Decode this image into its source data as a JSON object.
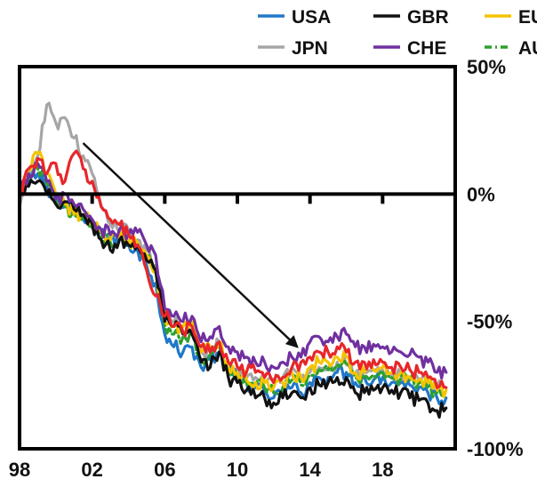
{
  "chart_data": {
    "type": "line",
    "title": "",
    "xlabel": "",
    "ylabel": "",
    "xlim": [
      1998,
      2022
    ],
    "ylim": [
      -100,
      50
    ],
    "x_ticks": [
      {
        "value": 1998,
        "label": "98"
      },
      {
        "value": 2002,
        "label": "02"
      },
      {
        "value": 2006,
        "label": "06"
      },
      {
        "value": 2010,
        "label": "10"
      },
      {
        "value": 2014,
        "label": "14"
      },
      {
        "value": 2018,
        "label": "18"
      }
    ],
    "y_ticks": [
      {
        "value": 50,
        "label": "50%"
      },
      {
        "value": 0,
        "label": "0%"
      },
      {
        "value": -50,
        "label": "-50%"
      },
      {
        "value": -100,
        "label": "-100%"
      }
    ],
    "grid": false,
    "y_axis_side": "right",
    "legend_position": "top",
    "series": [
      {
        "name": "USA",
        "color": "#1f78c8",
        "dash": "solid",
        "x": [
          1998,
          1998.5,
          1999,
          1999.5,
          2000,
          2000.5,
          2001,
          2001.5,
          2002,
          2002.5,
          2003,
          2003.5,
          2004,
          2004.5,
          2005,
          2005.5,
          2006,
          2006.5,
          2007,
          2007.5,
          2008,
          2008.5,
          2009,
          2009.5,
          2010,
          2010.5,
          2011,
          2011.5,
          2012,
          2012.5,
          2013,
          2013.5,
          2014,
          2014.5,
          2015,
          2015.5,
          2016,
          2016.5,
          2017,
          2017.5,
          2018,
          2018.5,
          2019,
          2019.5,
          2020,
          2020.5,
          2021,
          2021.5
        ],
        "values": [
          0,
          5,
          8,
          3,
          -2,
          -5,
          -8,
          -10,
          -12,
          -14,
          -18,
          -18,
          -20,
          -22,
          -28,
          -35,
          -55,
          -60,
          -62,
          -60,
          -68,
          -65,
          -62,
          -70,
          -72,
          -74,
          -76,
          -78,
          -80,
          -78,
          -76,
          -78,
          -74,
          -72,
          -72,
          -70,
          -70,
          -74,
          -72,
          -73,
          -72,
          -74,
          -74,
          -75,
          -76,
          -78,
          -80,
          -80
        ]
      },
      {
        "name": "GBR",
        "color": "#111111",
        "dash": "solid",
        "x": [
          1998,
          1998.5,
          1999,
          1999.5,
          2000,
          2000.5,
          2001,
          2001.5,
          2002,
          2002.5,
          2003,
          2003.5,
          2004,
          2004.5,
          2005,
          2005.5,
          2006,
          2006.5,
          2007,
          2007.5,
          2008,
          2008.5,
          2009,
          2009.5,
          2010,
          2010.5,
          2011,
          2011.5,
          2012,
          2012.5,
          2013,
          2013.5,
          2014,
          2014.5,
          2015,
          2015.5,
          2016,
          2016.5,
          2017,
          2017.5,
          2018,
          2018.5,
          2019,
          2019.5,
          2020,
          2020.5,
          2021,
          2021.5
        ],
        "values": [
          0,
          3,
          5,
          0,
          -4,
          -3,
          -6,
          -8,
          -12,
          -18,
          -22,
          -18,
          -20,
          -20,
          -26,
          -30,
          -50,
          -52,
          -55,
          -55,
          -66,
          -68,
          -62,
          -72,
          -74,
          -77,
          -80,
          -80,
          -82,
          -80,
          -78,
          -80,
          -76,
          -75,
          -74,
          -72,
          -72,
          -78,
          -78,
          -77,
          -76,
          -77,
          -78,
          -80,
          -81,
          -82,
          -85,
          -84
        ]
      },
      {
        "name": "JPN",
        "color": "#a6a6a6",
        "dash": "solid",
        "x": [
          1998,
          1998.5,
          1999,
          1999.5,
          2000,
          2000.5,
          2001,
          2001.5,
          2002,
          2002.5,
          2003,
          2003.5,
          2004,
          2004.5,
          2005,
          2005.5,
          2006,
          2006.5,
          2007,
          2007.5,
          2008,
          2008.5,
          2009,
          2009.5,
          2010,
          2010.5,
          2011,
          2011.5,
          2012,
          2012.5,
          2013,
          2013.5,
          2014,
          2014.5,
          2015,
          2015.5,
          2016,
          2016.5,
          2017,
          2017.5,
          2018,
          2018.5,
          2019,
          2019.5,
          2020,
          2020.5,
          2021,
          2021.5
        ],
        "values": [
          -5,
          5,
          15,
          35,
          28,
          30,
          22,
          15,
          8,
          -5,
          -12,
          -15,
          -14,
          -18,
          -22,
          -28,
          -48,
          -50,
          -54,
          -52,
          -62,
          -62,
          -58,
          -68,
          -70,
          -72,
          -72,
          -74,
          -74,
          -72,
          -68,
          -72,
          -70,
          -68,
          -68,
          -66,
          -67,
          -70,
          -70,
          -69,
          -69,
          -70,
          -71,
          -72,
          -73,
          -74,
          -76,
          -76
        ]
      },
      {
        "name": "CHE",
        "color": "#7030a0",
        "dash": "solid",
        "x": [
          1998,
          1998.5,
          1999,
          1999.5,
          2000,
          2000.5,
          2001,
          2001.5,
          2002,
          2002.5,
          2003,
          2003.5,
          2004,
          2004.5,
          2005,
          2005.5,
          2006,
          2006.5,
          2007,
          2007.5,
          2008,
          2008.5,
          2009,
          2009.5,
          2010,
          2010.5,
          2011,
          2011.5,
          2012,
          2012.5,
          2013,
          2013.5,
          2014,
          2014.5,
          2015,
          2015.5,
          2016,
          2016.5,
          2017,
          2017.5,
          2018,
          2018.5,
          2019,
          2019.5,
          2020,
          2020.5,
          2021,
          2021.5
        ],
        "values": [
          0,
          8,
          12,
          5,
          -2,
          0,
          -4,
          -6,
          -10,
          -14,
          -16,
          -14,
          -16,
          -15,
          -20,
          -24,
          -45,
          -48,
          -50,
          -48,
          -58,
          -56,
          -52,
          -60,
          -62,
          -64,
          -66,
          -66,
          -68,
          -66,
          -64,
          -64,
          -58,
          -56,
          -58,
          -56,
          -55,
          -60,
          -60,
          -59,
          -60,
          -62,
          -62,
          -63,
          -64,
          -66,
          -70,
          -70
        ]
      },
      {
        "name": "EUR",
        "color": "#f5c400",
        "dash": "solid",
        "x": [
          1998,
          1998.5,
          1999,
          1999.5,
          2000,
          2000.5,
          2001,
          2001.5,
          2002,
          2002.5,
          2003,
          2003.5,
          2004,
          2004.5,
          2005,
          2005.5,
          2006,
          2006.5,
          2007,
          2007.5,
          2008,
          2008.5,
          2009,
          2009.5,
          2010,
          2010.5,
          2011,
          2011.5,
          2012,
          2012.5,
          2013,
          2013.5,
          2014,
          2014.5,
          2015,
          2015.5,
          2016,
          2016.5,
          2017,
          2017.5,
          2018,
          2018.5,
          2019,
          2019.5,
          2020,
          2020.5,
          2021,
          2021.5
        ],
        "values": [
          0,
          10,
          16,
          8,
          0,
          -4,
          -8,
          -8,
          -12,
          -15,
          -18,
          -17,
          -18,
          -19,
          -24,
          -30,
          -50,
          -52,
          -52,
          -50,
          -62,
          -60,
          -58,
          -68,
          -70,
          -73,
          -74,
          -74,
          -76,
          -74,
          -70,
          -72,
          -68,
          -66,
          -66,
          -64,
          -64,
          -70,
          -70,
          -69,
          -68,
          -70,
          -70,
          -72,
          -73,
          -74,
          -77,
          -77
        ]
      },
      {
        "name": "AUS",
        "color": "#2ca02c",
        "dash": "dashdot",
        "x": [
          1998,
          1998.5,
          1999,
          1999.5,
          2000,
          2000.5,
          2001,
          2001.5,
          2002,
          2002.5,
          2003,
          2003.5,
          2004,
          2004.5,
          2005,
          2005.5,
          2006,
          2006.5,
          2007,
          2007.5,
          2008,
          2008.5,
          2009,
          2009.5,
          2010,
          2010.5,
          2011,
          2011.5,
          2012,
          2012.5,
          2013,
          2013.5,
          2014,
          2014.5,
          2015,
          2015.5,
          2016,
          2016.5,
          2017,
          2017.5,
          2018,
          2018.5,
          2019,
          2019.5,
          2020,
          2020.5,
          2021,
          2021.5
        ],
        "values": [
          0,
          6,
          10,
          4,
          -3,
          -5,
          -8,
          -9,
          -13,
          -16,
          -19,
          -18,
          -19,
          -20,
          -25,
          -31,
          -52,
          -55,
          -56,
          -55,
          -65,
          -63,
          -60,
          -70,
          -71,
          -74,
          -75,
          -76,
          -78,
          -76,
          -73,
          -75,
          -71,
          -69,
          -69,
          -67,
          -67,
          -72,
          -71,
          -71,
          -70,
          -72,
          -72,
          -73,
          -74,
          -76,
          -78,
          -78
        ]
      },
      {
        "name": "",
        "color": "#e8262a",
        "dash": "solid",
        "x": [
          1998,
          1998.5,
          1999,
          1999.5,
          2000,
          2000.5,
          2001,
          2001.5,
          2002,
          2002.5,
          2003,
          2003.5,
          2004,
          2004.5,
          2005,
          2005.5,
          2006,
          2006.5,
          2007,
          2007.5,
          2008,
          2008.5,
          2009,
          2009.5,
          2010,
          2010.5,
          2011,
          2011.5,
          2012,
          2012.5,
          2013,
          2013.5,
          2014,
          2014.5,
          2015,
          2015.5,
          2016,
          2016.5,
          2017,
          2017.5,
          2018,
          2018.5,
          2019,
          2019.5,
          2020,
          2020.5,
          2021,
          2021.5
        ],
        "values": [
          0,
          10,
          14,
          8,
          12,
          5,
          16,
          10,
          5,
          -5,
          -10,
          -12,
          -16,
          -20,
          -30,
          -40,
          -48,
          -52,
          -54,
          -52,
          -60,
          -62,
          -58,
          -66,
          -68,
          -70,
          -70,
          -72,
          -74,
          -72,
          -68,
          -66,
          -64,
          -62,
          -62,
          -60,
          -62,
          -66,
          -66,
          -65,
          -66,
          -68,
          -68,
          -69,
          -70,
          -72,
          -76,
          -76
        ]
      }
    ],
    "annotations": [
      {
        "type": "arrow",
        "from": [
          2001.5,
          20
        ],
        "to": [
          2013.3,
          -60
        ]
      }
    ]
  }
}
